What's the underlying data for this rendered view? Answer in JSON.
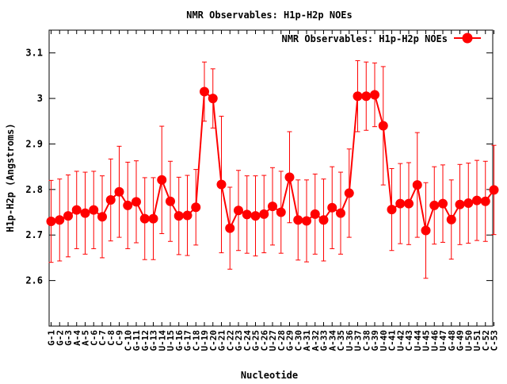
{
  "chart_data": {
    "type": "line",
    "title": "NMR Observables: H1p-H2p NOEs",
    "xlabel": "Nucleotide",
    "ylabel": "H1p-H2p (Angstroms)",
    "ylim": [
      2.5,
      3.15
    ],
    "yticks": [
      2.6,
      2.7,
      2.8,
      2.9,
      3,
      3.1
    ],
    "ytick_labels": [
      "2.6",
      "2.7",
      "2.8",
      "2.9",
      "3",
      "3.1"
    ],
    "grid": false,
    "legend_position": "top-right",
    "categories": [
      "G-1",
      "G-2",
      "G-3",
      "A-4",
      "A-5",
      "C-6",
      "C-7",
      "C-8",
      "C-9",
      "C-10",
      "G-11",
      "G-12",
      "G-13",
      "U-14",
      "U-15",
      "G-16",
      "G-17",
      "C-18",
      "U-19",
      "C-20",
      "G-21",
      "C-22",
      "G-23",
      "C-24",
      "G-25",
      "C-26",
      "U-27",
      "C-28",
      "G-29",
      "C-30",
      "A-31",
      "A-32",
      "G-33",
      "A-34",
      "C-35",
      "U-36",
      "U-37",
      "C-38",
      "G-39",
      "U-40",
      "C-41",
      "U-42",
      "C-43",
      "U-44",
      "U-45",
      "U-46",
      "U-47",
      "G-48",
      "G-49",
      "U-50",
      "U-51",
      "C-52",
      "C-53"
    ],
    "series": [
      {
        "name": "NMR Observables: H1p-H2p NOEs",
        "color": "#ff0000",
        "values": [
          2.73,
          2.733,
          2.742,
          2.755,
          2.748,
          2.755,
          2.74,
          2.777,
          2.795,
          2.765,
          2.773,
          2.736,
          2.736,
          2.821,
          2.774,
          2.742,
          2.743,
          2.761,
          3.015,
          3.0,
          2.811,
          2.715,
          2.754,
          2.745,
          2.742,
          2.746,
          2.763,
          2.75,
          2.827,
          2.733,
          2.731,
          2.746,
          2.733,
          2.76,
          2.748,
          2.792,
          3.005,
          3.005,
          3.008,
          2.94,
          2.756,
          2.769,
          2.769,
          2.81,
          2.71,
          2.765,
          2.769,
          2.734,
          2.767,
          2.77,
          2.776,
          2.774,
          2.799
        ],
        "errors": [
          0.09,
          0.09,
          0.09,
          0.085,
          0.09,
          0.085,
          0.09,
          0.09,
          0.1,
          0.095,
          0.09,
          0.09,
          0.09,
          0.118,
          0.088,
          0.085,
          0.088,
          0.083,
          0.065,
          0.065,
          0.15,
          0.09,
          0.088,
          0.085,
          0.088,
          0.085,
          0.085,
          0.09,
          0.1,
          0.088,
          0.09,
          0.088,
          0.09,
          0.09,
          0.09,
          0.097,
          0.078,
          0.075,
          0.07,
          0.13,
          0.09,
          0.088,
          0.09,
          0.115,
          0.105,
          0.085,
          0.085,
          0.087,
          0.088,
          0.088,
          0.088,
          0.088,
          0.098
        ]
      }
    ]
  },
  "legend": {
    "label": "NMR Observables: H1p-H2p NOEs"
  }
}
